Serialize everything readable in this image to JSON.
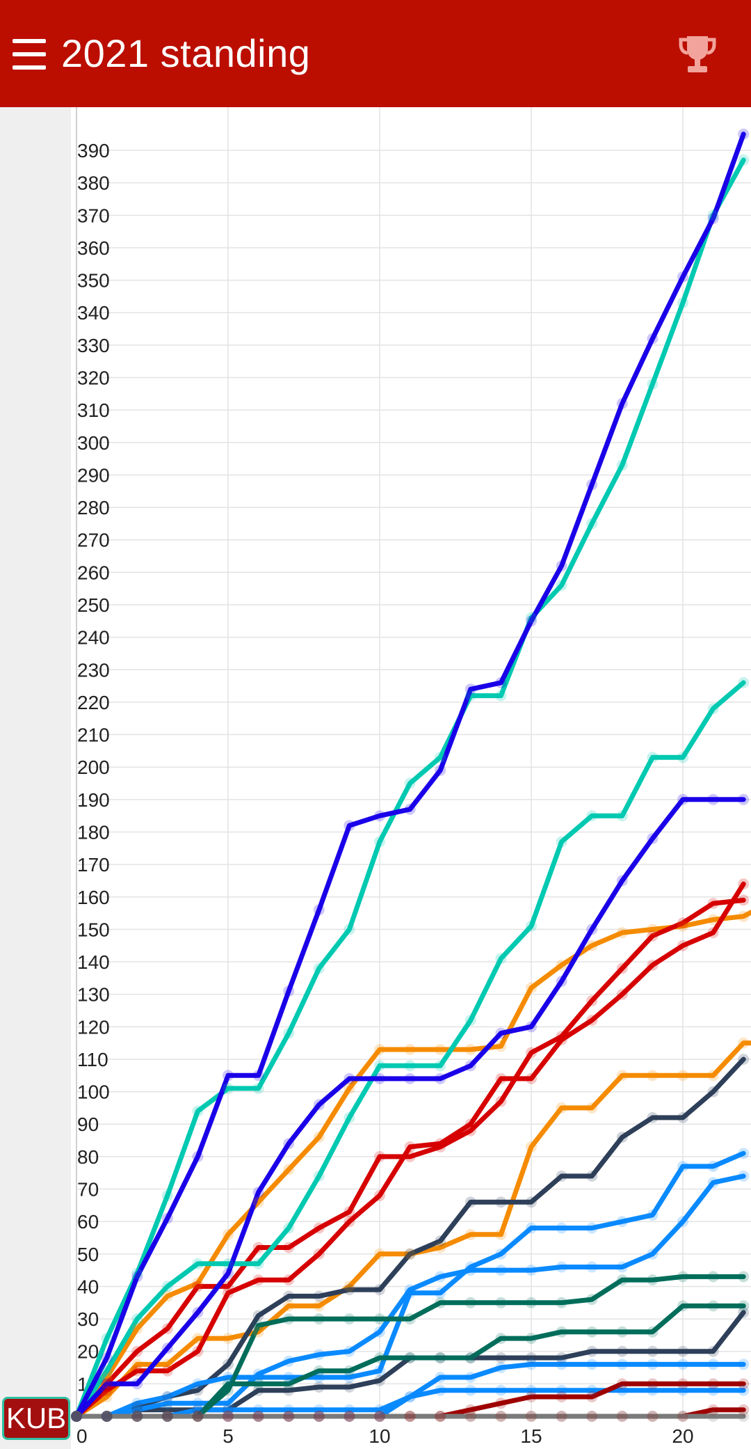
{
  "app_bar": {
    "title": "2021 standing",
    "menu_icon": "hamburger-menu-icon",
    "action_icon": "trophy-icon",
    "bg_color": "#bb0e00"
  },
  "badge": {
    "label": "KUB",
    "bg_color": "#a30f0f"
  },
  "chart_data": {
    "type": "line",
    "title": "",
    "xlabel": "",
    "ylabel": "",
    "xlim": [
      0,
      22
    ],
    "ylim": [
      0,
      400
    ],
    "x_ticks": [
      0,
      5,
      10,
      15,
      20
    ],
    "y_ticks": [
      10,
      20,
      30,
      40,
      50,
      60,
      70,
      80,
      90,
      100,
      110,
      120,
      130,
      140,
      150,
      160,
      170,
      180,
      190,
      200,
      210,
      220,
      230,
      240,
      250,
      260,
      270,
      280,
      290,
      300,
      310,
      320,
      330,
      340,
      350,
      360,
      370,
      380,
      390
    ],
    "grid": true,
    "legend": "none",
    "series": [
      {
        "color": "#f58b00",
        "values": [
          0,
          6,
          16,
          16,
          24,
          24,
          26,
          34,
          34,
          40,
          50,
          50,
          52,
          56,
          56,
          83,
          95,
          95,
          105,
          105,
          105,
          105,
          115,
          115
        ]
      },
      {
        "color": "#f58b00",
        "values": [
          0,
          12,
          27,
          37,
          41,
          56,
          66,
          76,
          86,
          101,
          113,
          113,
          113,
          113,
          114,
          132,
          139,
          145,
          149,
          150,
          151,
          153,
          154,
          159
        ]
      },
      {
        "color": "#d60000",
        "values": [
          0,
          10,
          20,
          27,
          40,
          40,
          52,
          52,
          58,
          63,
          80,
          80,
          83,
          88,
          97,
          112,
          117,
          128,
          138,
          148,
          152,
          158,
          159
        ]
      },
      {
        "color": "#d60000",
        "values": [
          0,
          8,
          14,
          14,
          20,
          38,
          42,
          42,
          50,
          60,
          68,
          83,
          84,
          90,
          104,
          104,
          116,
          122,
          130,
          139,
          145,
          149,
          164
        ]
      },
      {
        "color": "#00c9b1",
        "values": [
          0,
          24,
          44,
          68,
          94,
          101,
          101,
          118,
          138,
          150,
          177,
          195,
          203,
          222,
          222,
          246,
          256,
          275,
          293,
          318,
          343,
          370,
          387
        ]
      },
      {
        "color": "#00c9b1",
        "values": [
          0,
          14,
          30,
          40,
          47,
          47,
          47,
          58,
          74,
          92,
          108,
          108,
          108,
          122,
          141,
          151,
          177,
          185,
          185,
          203,
          203,
          218,
          226
        ]
      },
      {
        "color": "#1a00e8",
        "values": [
          0,
          18,
          43,
          61,
          80,
          105,
          105,
          131,
          156,
          182,
          185,
          187,
          199,
          224,
          226,
          245,
          262,
          287,
          312,
          332,
          351,
          369,
          395
        ]
      },
      {
        "color": "#1a00e8",
        "values": [
          0,
          10,
          10,
          21,
          32,
          44,
          69,
          84,
          96,
          104,
          104,
          104,
          104,
          108,
          118,
          120,
          134,
          150,
          165,
          178,
          190,
          190,
          190
        ]
      },
      {
        "color": "#2e3f59",
        "values": [
          0,
          0,
          3,
          6,
          8,
          16,
          31,
          37,
          37,
          39,
          39,
          50,
          54,
          66,
          66,
          66,
          74,
          74,
          86,
          92,
          92,
          100,
          110
        ]
      },
      {
        "color": "#2e3f59",
        "values": [
          0,
          0,
          2,
          2,
          2,
          2,
          8,
          8,
          9,
          9,
          11,
          18,
          18,
          18,
          18,
          18,
          18,
          20,
          20,
          20,
          20,
          20,
          32
        ]
      },
      {
        "color": "#0a8aff",
        "values": [
          0,
          0,
          4,
          6,
          10,
          12,
          12,
          12,
          12,
          12,
          14,
          38,
          38,
          46,
          50,
          58,
          58,
          58,
          60,
          62,
          77,
          77,
          81
        ]
      },
      {
        "color": "#0a8aff",
        "values": [
          0,
          0,
          2,
          4,
          4,
          4,
          13,
          17,
          19,
          20,
          26,
          39,
          43,
          45,
          45,
          45,
          46,
          46,
          46,
          50,
          60,
          72,
          74
        ]
      },
      {
        "color": "#0a8aff",
        "values": [
          0,
          0,
          0,
          0,
          2,
          2,
          2,
          2,
          2,
          2,
          2,
          6,
          12,
          12,
          15,
          16,
          16,
          16,
          16,
          16,
          16,
          16,
          16
        ]
      },
      {
        "color": "#0a8aff",
        "values": [
          0,
          0,
          0,
          0,
          0,
          0,
          0,
          0,
          0,
          0,
          0,
          6,
          8,
          8,
          8,
          8,
          8,
          8,
          8,
          8,
          8,
          8,
          8
        ]
      },
      {
        "color": "#006d5b",
        "values": [
          0,
          0,
          0,
          0,
          0,
          8,
          28,
          30,
          30,
          30,
          30,
          30,
          35,
          35,
          35,
          35,
          35,
          36,
          42,
          42,
          43,
          43,
          43
        ]
      },
      {
        "color": "#006d5b",
        "values": [
          0,
          0,
          0,
          0,
          0,
          10,
          10,
          10,
          14,
          14,
          18,
          18,
          18,
          18,
          24,
          24,
          26,
          26,
          26,
          26,
          34,
          34,
          34
        ]
      },
      {
        "color": "#9e0000",
        "values": [
          0,
          0,
          0,
          0,
          0,
          0,
          0,
          0,
          0,
          0,
          0,
          0,
          0,
          2,
          4,
          6,
          6,
          6,
          10,
          10,
          10,
          10,
          10
        ]
      },
      {
        "color": "#9e0000",
        "values": [
          0,
          0,
          0,
          0,
          0,
          0,
          0,
          0,
          0,
          0,
          0,
          0,
          0,
          0,
          0,
          0,
          0,
          0,
          0,
          0,
          0,
          2,
          2
        ]
      },
      {
        "color": "#7a7a7a",
        "values": [
          0,
          0,
          0,
          0,
          0,
          0,
          0,
          0,
          0,
          0,
          0,
          0,
          0,
          0,
          0,
          0,
          0,
          0,
          0,
          0,
          0,
          0,
          0
        ]
      }
    ]
  }
}
